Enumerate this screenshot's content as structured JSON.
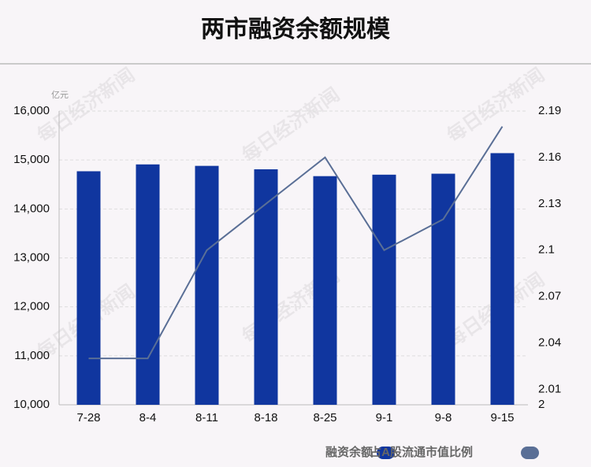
{
  "chart_data": {
    "type": "bar-line",
    "title": "两市融资余额规模",
    "y_label": "亿元",
    "watermark": "每日经济新闻",
    "categories": [
      "7-28",
      "8-4",
      "8-11",
      "8-18",
      "8-25",
      "9-1",
      "9-8",
      "9-15"
    ],
    "series": [
      {
        "name": "融资余额",
        "type": "bar",
        "color": "#10369f",
        "values": [
          14770,
          14910,
          14880,
          14810,
          14670,
          14700,
          14720,
          15140
        ]
      },
      {
        "name": "占A股流通市值比例",
        "type": "line",
        "axis": "y2",
        "color": "#5a6f96",
        "values": [
          2.03,
          2.03,
          2.1,
          2.13,
          2.16,
          2.1,
          2.12,
          2.18
        ]
      }
    ],
    "ylim": [
      10000,
      16000
    ],
    "yticks": [
      {
        "value": 10000,
        "label": "10,000"
      },
      {
        "value": 11000,
        "label": "11,000"
      },
      {
        "value": 12000,
        "label": "12,000"
      },
      {
        "value": 13000,
        "label": "13,000"
      },
      {
        "value": 14000,
        "label": "14,000"
      },
      {
        "value": 15000,
        "label": "15,000"
      },
      {
        "value": 16000,
        "label": "16,000"
      }
    ],
    "y2lim": [
      2,
      2.19
    ],
    "y2ticks": [
      2,
      2.01,
      2.04,
      2.07,
      2.1,
      2.13,
      2.16,
      2.19
    ],
    "grid": true,
    "legend": "bottom-right"
  }
}
